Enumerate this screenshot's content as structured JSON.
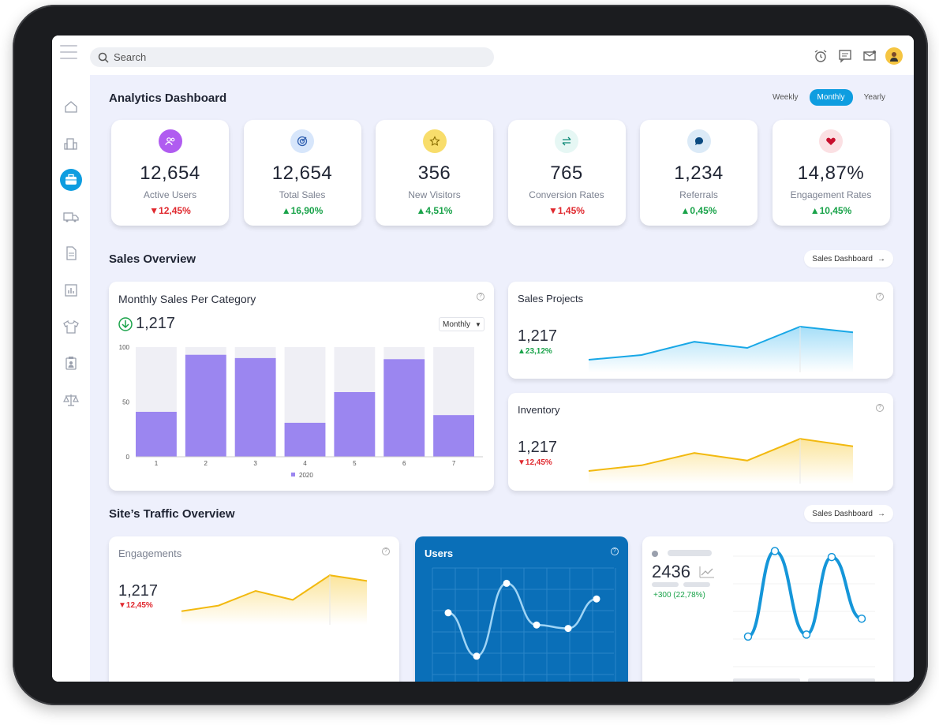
{
  "search": {
    "placeholder": "Search"
  },
  "dashboard": {
    "title": "Analytics Dashboard",
    "periods": [
      "Weekly",
      "Monthly",
      "Yearly"
    ],
    "active_period": "Monthly"
  },
  "kpis": [
    {
      "value": "12,654",
      "label": "Active Users",
      "change": "12,45%",
      "trend": "down",
      "icon": "users-icon",
      "color": "#b05cf0"
    },
    {
      "value": "12,654",
      "label": "Total Sales",
      "change": "16,90%",
      "trend": "up",
      "icon": "target-icon",
      "color": "#4a8be8"
    },
    {
      "value": "356",
      "label": "New Visitors",
      "change": "4,51%",
      "trend": "up",
      "icon": "star-icon",
      "color": "#f5c542"
    },
    {
      "value": "765",
      "label": "Conversion Rates",
      "change": "1,45%",
      "trend": "down",
      "icon": "exchange-icon",
      "color": "#19b8a0"
    },
    {
      "value": "1,234",
      "label": "Referrals",
      "change": "0,45%",
      "trend": "up",
      "icon": "chat-icon",
      "color": "#2f6fb0"
    },
    {
      "value": "14,87%",
      "label": "Engagement Rates",
      "change": "10,45%",
      "trend": "up",
      "icon": "heart-icon",
      "color": "#c8102e"
    }
  ],
  "sales": {
    "title": "Sales Overview",
    "button": "Sales Dashboard",
    "monthly": {
      "title": "Monthly Sales Per Category",
      "value": "1,217",
      "dropdown": "Monthly"
    },
    "projects": {
      "title": "Sales Projects",
      "value": "1,217",
      "change": "23,12%"
    },
    "inventory": {
      "title": "Inventory",
      "value": "1,217",
      "change": "12,45%"
    }
  },
  "traffic": {
    "title": "Site’s Traffic Overview",
    "button": "Sales Dashboard",
    "engagements": {
      "title": "Engagements",
      "value": "1,217",
      "change": "12,45%"
    },
    "users": {
      "title": "Users"
    },
    "stats": {
      "value": "2436",
      "change": "+300 (22,78%)"
    }
  },
  "chart_data": [
    {
      "type": "bar",
      "categories": [
        "1",
        "2",
        "3",
        "4",
        "5",
        "6",
        "7"
      ],
      "series": [
        {
          "name": "2020",
          "values": [
            41,
            93,
            90,
            31,
            59,
            89,
            38
          ]
        }
      ],
      "ylim": [
        0,
        100
      ],
      "yticks": [
        0,
        50,
        100
      ],
      "legend": "bottom"
    },
    {
      "type": "area",
      "values": [
        10,
        20,
        48,
        35,
        80,
        68
      ]
    },
    {
      "type": "area",
      "values": [
        10,
        22,
        48,
        32,
        78,
        62
      ]
    },
    {
      "type": "area",
      "values": [
        12,
        24,
        55,
        36,
        88,
        76
      ]
    },
    {
      "type": "line",
      "values": [
        62,
        12,
        96,
        48,
        44,
        78
      ]
    },
    {
      "type": "line",
      "values": [
        12,
        98,
        14,
        92,
        30
      ]
    }
  ]
}
